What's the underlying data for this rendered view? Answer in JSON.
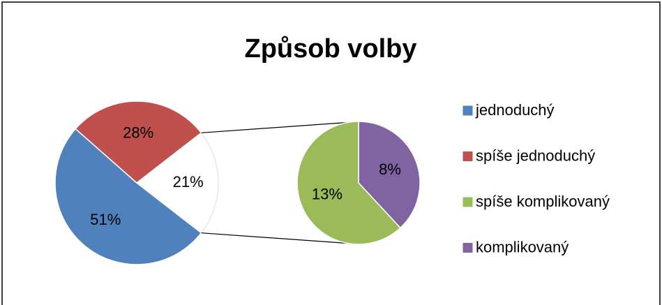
{
  "chart_data": {
    "type": "pie_of_pie",
    "title": "Způsob volby",
    "categories": [
      "jednoduchý",
      "spíše jednoduchý",
      "spíše komplikovaný",
      "komplikovaný"
    ],
    "values": [
      51,
      28,
      13,
      8
    ],
    "value_labels": [
      "51%",
      "28%",
      "13%",
      "8%"
    ],
    "colors": [
      "#4f81bd",
      "#c0504d",
      "#9bbb59",
      "#8064a2"
    ],
    "split_value": 21,
    "split_value_label": "21%",
    "secondary_count": 2,
    "legend_position": "right"
  }
}
